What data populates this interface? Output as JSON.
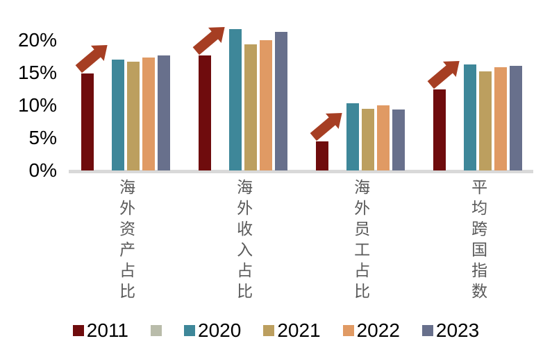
{
  "chart_data": {
    "type": "bar",
    "title": "",
    "categories": [
      "海外资产占比",
      "海外收入占比",
      "海外员工占比",
      "平均跨国指数"
    ],
    "series": [
      {
        "name": "2011",
        "color": "#6f0c0d",
        "values": [
          14.9,
          17.7,
          4.5,
          12.4
        ]
      },
      {
        "name": "",
        "color": "#b9bcaa",
        "values": [
          null,
          null,
          null,
          null
        ],
        "note": "unlabeled gray legend swatch; occupies an empty bar slot in each group"
      },
      {
        "name": "2020",
        "color": "#3e8799",
        "values": [
          17.0,
          21.7,
          10.3,
          16.3
        ]
      },
      {
        "name": "2021",
        "color": "#bc9f5f",
        "values": [
          16.7,
          19.4,
          9.5,
          15.2
        ]
      },
      {
        "name": "2022",
        "color": "#e09a64",
        "values": [
          17.3,
          20.0,
          10.0,
          15.8
        ]
      },
      {
        "name": "2023",
        "color": "#68708c",
        "values": [
          17.7,
          21.3,
          9.4,
          16.1
        ]
      }
    ],
    "unit": "%",
    "ylim": [
      0,
      22
    ],
    "yticks": [
      {
        "label": "20%",
        "value": 20
      },
      {
        "label": "15%",
        "value": 15
      },
      {
        "label": "10%",
        "value": 10
      },
      {
        "label": "5%",
        "value": 5
      },
      {
        "label": "0%",
        "value": 0
      }
    ],
    "grid": false,
    "legend_position": "bottom",
    "annotations": [
      {
        "type": "up-trend-arrow",
        "color": "#a63e23",
        "applies_to": "2011 bar of each category group"
      }
    ]
  },
  "colors": {
    "background": "#ffffff",
    "axis_line": "#d9d9d9",
    "tick_text": "#000000",
    "category_text": "#595959",
    "arrow": "#a63e23"
  }
}
